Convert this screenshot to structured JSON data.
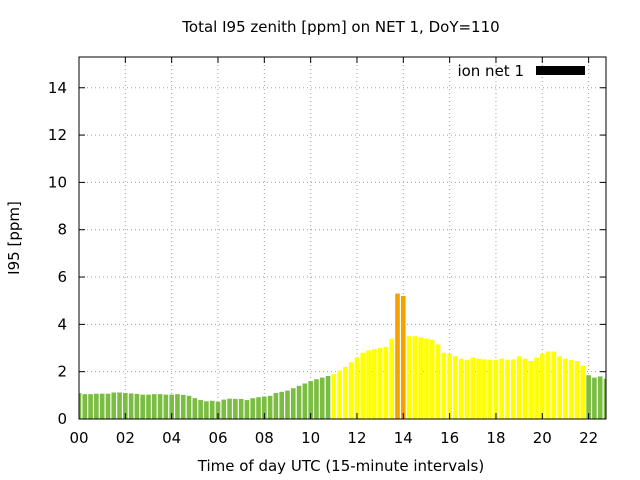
{
  "chart_data": {
    "type": "bar",
    "title": "Total I95 zenith [ppm] on NET 1, DoY=110",
    "xlabel": "Time of day UTC (15-minute intervals)",
    "ylabel": "I95 [ppm]",
    "xlim": [
      0,
      22.75
    ],
    "ylim": [
      0,
      15.3
    ],
    "x_ticks": [
      "00",
      "02",
      "04",
      "06",
      "08",
      "10",
      "12",
      "14",
      "16",
      "18",
      "20",
      "22"
    ],
    "y_ticks": [
      "0",
      "2",
      "4",
      "6",
      "8",
      "10",
      "12",
      "14"
    ],
    "grid": true,
    "legend_position": "top-right",
    "bar_interval_hours": 0.25,
    "colors": {
      "green": "#7bbd42",
      "yellow": "#ffff00",
      "orange": "#f5a200",
      "legend_swatch": "#000000",
      "grid": "#a0a0a0"
    },
    "series": [
      {
        "name": "ion net 1",
        "values": [
          1.1,
          1.05,
          1.05,
          1.07,
          1.07,
          1.07,
          1.12,
          1.12,
          1.1,
          1.08,
          1.06,
          1.03,
          1.03,
          1.05,
          1.05,
          1.03,
          1.03,
          1.05,
          1.02,
          0.98,
          0.88,
          0.8,
          0.75,
          0.77,
          0.73,
          0.82,
          0.86,
          0.85,
          0.85,
          0.8,
          0.88,
          0.92,
          0.95,
          0.98,
          1.1,
          1.15,
          1.2,
          1.3,
          1.4,
          1.5,
          1.6,
          1.68,
          1.75,
          1.82,
          1.9,
          2.05,
          2.2,
          2.4,
          2.6,
          2.8,
          2.9,
          2.95,
          3.0,
          3.05,
          3.4,
          5.3,
          5.2,
          3.5,
          3.5,
          3.45,
          3.4,
          3.35,
          3.15,
          2.8,
          2.75,
          2.65,
          2.55,
          2.5,
          2.6,
          2.55,
          2.52,
          2.5,
          2.5,
          2.55,
          2.5,
          2.52,
          2.65,
          2.55,
          2.45,
          2.6,
          2.75,
          2.85,
          2.85,
          2.65,
          2.55,
          2.5,
          2.45,
          2.25,
          1.85,
          1.75,
          1.8,
          1.7,
          1.65,
          1.65
        ],
        "colors": [
          "green",
          "green",
          "green",
          "green",
          "green",
          "green",
          "green",
          "green",
          "green",
          "green",
          "green",
          "green",
          "green",
          "green",
          "green",
          "green",
          "green",
          "green",
          "green",
          "green",
          "green",
          "green",
          "green",
          "green",
          "green",
          "green",
          "green",
          "green",
          "green",
          "green",
          "green",
          "green",
          "green",
          "green",
          "green",
          "green",
          "green",
          "green",
          "green",
          "green",
          "green",
          "green",
          "green",
          "green",
          "yellow",
          "yellow",
          "yellow",
          "yellow",
          "yellow",
          "yellow",
          "yellow",
          "yellow",
          "yellow",
          "yellow",
          "yellow",
          "orange",
          "orange",
          "yellow",
          "yellow",
          "yellow",
          "yellow",
          "yellow",
          "yellow",
          "yellow",
          "yellow",
          "yellow",
          "yellow",
          "yellow",
          "yellow",
          "yellow",
          "yellow",
          "yellow",
          "yellow",
          "yellow",
          "yellow",
          "yellow",
          "yellow",
          "yellow",
          "yellow",
          "yellow",
          "yellow",
          "yellow",
          "yellow",
          "yellow",
          "yellow",
          "yellow",
          "yellow",
          "yellow",
          "green",
          "green",
          "green",
          "green",
          "green",
          "green"
        ]
      }
    ]
  }
}
